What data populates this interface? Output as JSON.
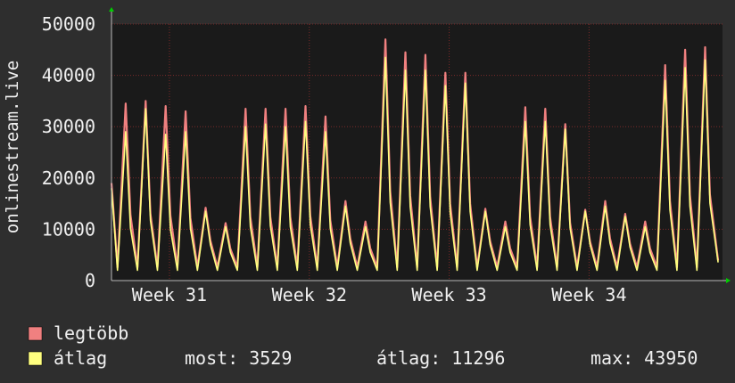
{
  "chart_data": {
    "type": "line",
    "y_label": "onlinestream.live",
    "xlim": [
      0,
      30.58
    ],
    "xticks": [
      {
        "value": 2.9,
        "label": "Week 31"
      },
      {
        "value": 9.9,
        "label": "Week 32"
      },
      {
        "value": 16.9,
        "label": "Week 33"
      },
      {
        "value": 23.9,
        "label": "Week 34"
      }
    ],
    "ylim": [
      0,
      50000
    ],
    "yticks": [
      0,
      10000,
      20000,
      30000,
      40000,
      50000
    ],
    "grid": true,
    "x": [
      0,
      0.3,
      0.71,
      0.95,
      1.3,
      1.71,
      1.95,
      2.3,
      2.71,
      2.95,
      3.3,
      3.71,
      3.95,
      4.3,
      4.71,
      4.95,
      5.3,
      5.71,
      5.95,
      6.3,
      6.71,
      6.95,
      7.3,
      7.71,
      7.95,
      8.3,
      8.71,
      8.95,
      9.3,
      9.71,
      9.95,
      10.3,
      10.71,
      10.95,
      11.3,
      11.71,
      11.95,
      12.3,
      12.71,
      12.95,
      13.3,
      13.71,
      13.95,
      14.3,
      14.71,
      14.95,
      15.3,
      15.71,
      15.95,
      16.3,
      16.71,
      16.95,
      17.3,
      17.71,
      17.95,
      18.3,
      18.71,
      18.95,
      19.3,
      19.71,
      19.95,
      20.3,
      20.71,
      20.95,
      21.3,
      21.71,
      21.95,
      22.3,
      22.71,
      22.95,
      23.3,
      23.71,
      23.95,
      24.3,
      24.71,
      24.95,
      25.3,
      25.71,
      25.95,
      26.3,
      26.71,
      26.95,
      27.3,
      27.71,
      27.95,
      28.3,
      28.71,
      28.95,
      29.3,
      29.71,
      29.95,
      30.36
    ],
    "series": [
      {
        "name": "legtöbb",
        "color": "#f08080",
        "values": [
          19000,
          2600,
          34500,
          12800,
          2600,
          35000,
          13000,
          2600,
          34000,
          12600,
          2600,
          33000,
          12200,
          2600,
          14200,
          7800,
          2600,
          11200,
          6200,
          2600,
          33500,
          12400,
          2600,
          33500,
          12400,
          2600,
          33500,
          12400,
          2600,
          34000,
          12600,
          2600,
          32000,
          11800,
          2600,
          15500,
          8200,
          2600,
          11500,
          6300,
          2600,
          47000,
          17400,
          2600,
          44500,
          16500,
          2600,
          44000,
          16300,
          2600,
          40500,
          15000,
          2600,
          40500,
          15000,
          2600,
          14000,
          7700,
          2600,
          11500,
          6300,
          2600,
          33800,
          12500,
          2600,
          33500,
          12400,
          2600,
          30500,
          11300,
          2600,
          13800,
          7600,
          2600,
          15500,
          8200,
          2600,
          13000,
          7200,
          2600,
          11500,
          6300,
          2600,
          42000,
          15500,
          2600,
          45000,
          16700,
          2600,
          45500,
          16800,
          3900
        ]
      },
      {
        "name": "átlag",
        "color": "#ffff80",
        "values": [
          18000,
          2000,
          29000,
          10200,
          2000,
          33500,
          11700,
          2000,
          28500,
          10000,
          2000,
          29000,
          10200,
          2000,
          13500,
          7000,
          2000,
          10500,
          5500,
          2000,
          30000,
          10500,
          2000,
          30500,
          10700,
          2000,
          30000,
          10500,
          2000,
          31000,
          10900,
          2000,
          29000,
          10200,
          2000,
          14500,
          7300,
          2000,
          10500,
          5500,
          2000,
          43500,
          15200,
          2000,
          41000,
          14400,
          2000,
          41000,
          14400,
          2000,
          38000,
          13300,
          2000,
          38500,
          13500,
          2000,
          13500,
          7000,
          2000,
          10500,
          5500,
          2000,
          31000,
          10900,
          2000,
          31000,
          10900,
          2000,
          29500,
          10300,
          2000,
          13500,
          7000,
          2000,
          14500,
          7300,
          2000,
          12500,
          6500,
          2000,
          10500,
          5500,
          2000,
          39000,
          13700,
          2000,
          41500,
          14500,
          2000,
          43000,
          15100,
          3529
        ]
      }
    ],
    "stats": [
      {
        "label": "most:",
        "value": 3529
      },
      {
        "label": "átlag:",
        "value": 11296
      },
      {
        "label": "max:",
        "value": 43950
      }
    ]
  }
}
